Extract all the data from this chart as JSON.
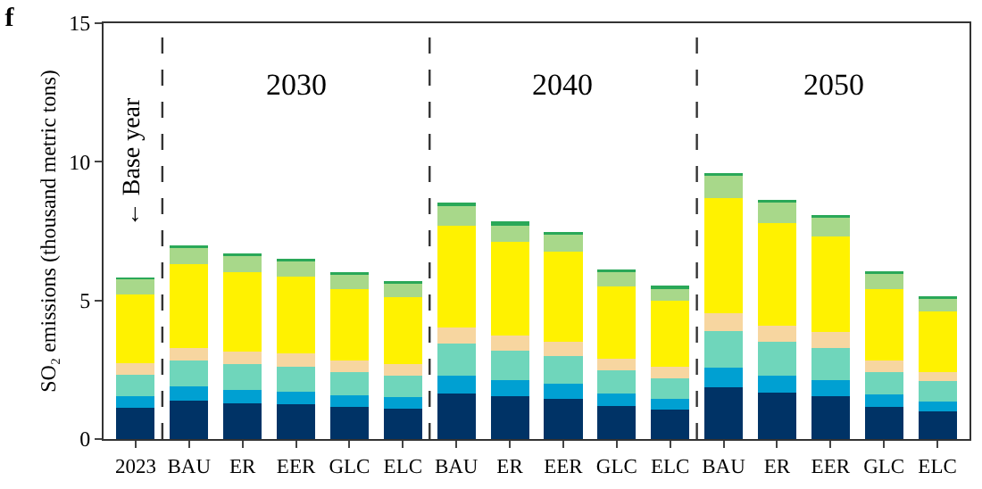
{
  "chart_data": {
    "type": "bar",
    "title": "f",
    "ylabel": "SO₂ emissions (thousand metric tons)",
    "categories": [
      "2023",
      "BAU",
      "ER",
      "EER",
      "GLC",
      "ELC",
      "BAU",
      "ER",
      "EER",
      "GLC",
      "ELC",
      "BAU",
      "ER",
      "EER",
      "GLC",
      "ELC"
    ],
    "stacked": true,
    "ylim": [
      0,
      15
    ],
    "yticks": [
      0,
      5,
      10,
      15
    ],
    "grid": false,
    "series": [
      {
        "color": "#003366",
        "values": [
          1.13,
          1.4,
          1.3,
          1.26,
          1.17,
          1.11,
          1.65,
          1.54,
          1.46,
          1.19,
          1.07,
          1.87,
          1.67,
          1.56,
          1.17,
          0.99
        ]
      },
      {
        "color": "#00a0d2",
        "values": [
          0.41,
          0.51,
          0.47,
          0.45,
          0.41,
          0.39,
          0.63,
          0.58,
          0.53,
          0.44,
          0.39,
          0.7,
          0.63,
          0.58,
          0.43,
          0.37
        ]
      },
      {
        "color": "#6fd6bb",
        "values": [
          0.79,
          0.91,
          0.93,
          0.9,
          0.83,
          0.78,
          1.16,
          1.07,
          1.01,
          0.86,
          0.74,
          1.32,
          1.22,
          1.15,
          0.83,
          0.72
        ]
      },
      {
        "color": "#f7d6a0",
        "values": [
          0.41,
          0.47,
          0.45,
          0.48,
          0.41,
          0.42,
          0.59,
          0.55,
          0.52,
          0.41,
          0.41,
          0.66,
          0.57,
          0.56,
          0.41,
          0.35
        ]
      },
      {
        "color": "#fff200",
        "values": [
          2.47,
          3.01,
          2.88,
          2.77,
          2.59,
          2.42,
          3.67,
          3.36,
          3.23,
          2.61,
          2.37,
          4.13,
          3.69,
          3.45,
          2.57,
          2.18
        ]
      },
      {
        "color": "#a8d88a",
        "values": [
          0.55,
          0.59,
          0.57,
          0.56,
          0.52,
          0.48,
          0.7,
          0.6,
          0.62,
          0.52,
          0.43,
          0.81,
          0.74,
          0.68,
          0.54,
          0.45
        ]
      },
      {
        "color": "#2aa858",
        "values": [
          0.06,
          0.09,
          0.09,
          0.08,
          0.08,
          0.1,
          0.12,
          0.14,
          0.1,
          0.1,
          0.12,
          0.1,
          0.1,
          0.11,
          0.1,
          0.1
        ]
      }
    ],
    "annotations": [
      "← Base year",
      "2030",
      "2040",
      "2050"
    ]
  }
}
